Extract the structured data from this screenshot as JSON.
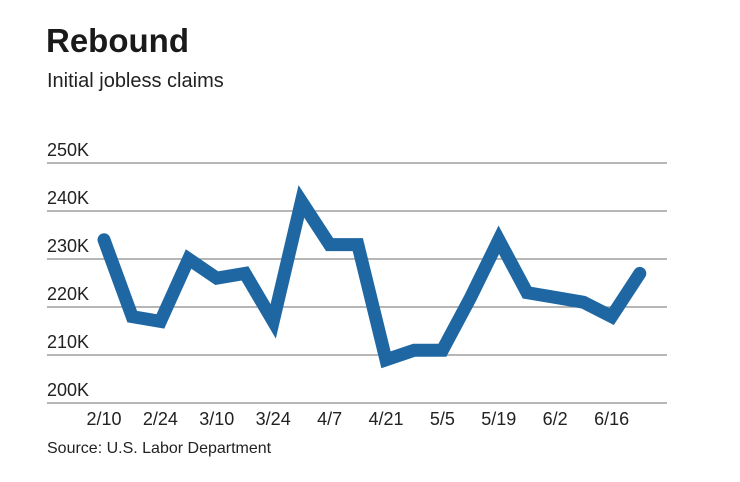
{
  "chart_data": {
    "type": "line",
    "title": "Rebound",
    "subtitle": "Initial jobless claims",
    "source": "Source: U.S. Labor Department",
    "xlabel": "",
    "ylabel": "",
    "ylim": [
      200000,
      250000
    ],
    "yticks": [
      200000,
      210000,
      220000,
      230000,
      240000,
      250000
    ],
    "ytick_labels": [
      "200K",
      "210K",
      "220K",
      "230K",
      "240K",
      "250K"
    ],
    "x": [
      "2/10",
      "2/17",
      "2/24",
      "3/3",
      "3/10",
      "3/17",
      "3/24",
      "3/31",
      "4/7",
      "4/14",
      "4/21",
      "4/28",
      "5/5",
      "5/12",
      "5/19",
      "5/26",
      "6/2",
      "6/9",
      "6/16",
      "6/23"
    ],
    "xtick_labels": [
      "2/10",
      "2/24",
      "3/10",
      "3/24",
      "4/7",
      "4/21",
      "5/5",
      "5/19",
      "6/2",
      "6/16"
    ],
    "series": [
      {
        "values": [
          234000,
          218000,
          217000,
          230000,
          226000,
          227000,
          217000,
          242000,
          233000,
          233000,
          209000,
          211000,
          211000,
          222000,
          234000,
          223000,
          222000,
          221000,
          218000,
          227000
        ]
      }
    ],
    "grid": "horizontal",
    "legend": "none",
    "colors": {
      "line": "#1f67a3",
      "grid": "#8a8a8a"
    }
  }
}
